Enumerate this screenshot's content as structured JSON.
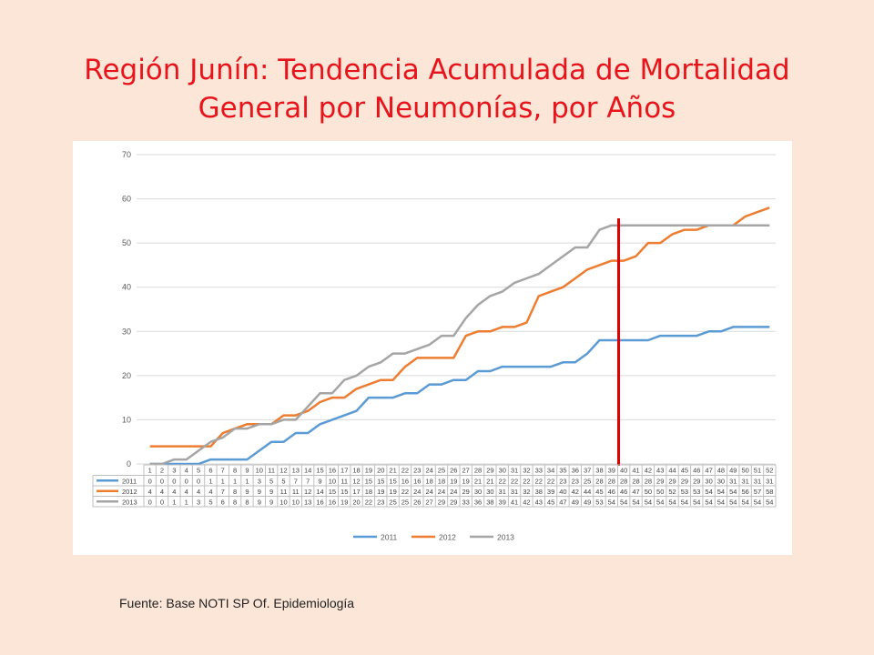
{
  "title": {
    "line1": "Región Junín: Tendencia Acumulada de Mortalidad",
    "line2": "General por Neumonías, por Años"
  },
  "source": "Fuente: Base NOTI SP Of. Epidemiología",
  "colors": {
    "2011": "#5b9bd5",
    "2012": "#ed7d31",
    "2013": "#a5a5a5",
    "marker": "#e00000"
  },
  "chart_data": {
    "type": "line",
    "title": "",
    "xlabel": "",
    "ylabel": "",
    "ylim": [
      0,
      70
    ],
    "yticks": [
      0,
      10,
      20,
      30,
      40,
      50,
      60,
      70
    ],
    "grid": true,
    "legend": "bottom",
    "vertical_marker_x": 40,
    "categories": [
      1,
      2,
      3,
      4,
      5,
      6,
      7,
      8,
      9,
      10,
      11,
      12,
      13,
      14,
      15,
      16,
      17,
      18,
      19,
      20,
      21,
      22,
      23,
      24,
      25,
      26,
      27,
      28,
      29,
      30,
      31,
      32,
      33,
      34,
      35,
      36,
      37,
      38,
      39,
      40,
      41,
      42,
      43,
      44,
      45,
      46,
      47,
      48,
      49,
      50,
      51,
      52
    ],
    "series": [
      {
        "name": "2011",
        "values": [
          0,
          0,
          0,
          0,
          0,
          1,
          1,
          1,
          1,
          3,
          5,
          5,
          7,
          7,
          9,
          10,
          11,
          12,
          15,
          15,
          15,
          16,
          16,
          18,
          18,
          19,
          19,
          21,
          21,
          22,
          22,
          22,
          22,
          22,
          23,
          23,
          25,
          28,
          28,
          28,
          28,
          28,
          29,
          29,
          29,
          29,
          30,
          30,
          31,
          31,
          31,
          31
        ]
      },
      {
        "name": "2012",
        "values": [
          4,
          4,
          4,
          4,
          4,
          4,
          7,
          8,
          9,
          9,
          9,
          11,
          11,
          12,
          14,
          15,
          15,
          17,
          18,
          19,
          19,
          22,
          24,
          24,
          24,
          24,
          29,
          30,
          30,
          31,
          31,
          32,
          38,
          39,
          40,
          42,
          44,
          45,
          46,
          46,
          47,
          50,
          50,
          52,
          53,
          53,
          54,
          54,
          54,
          56,
          57,
          58
        ]
      },
      {
        "name": "2013",
        "values": [
          0,
          0,
          1,
          1,
          3,
          5,
          6,
          8,
          8,
          9,
          9,
          10,
          10,
          13,
          16,
          16,
          19,
          20,
          22,
          23,
          25,
          25,
          26,
          27,
          29,
          29,
          33,
          36,
          38,
          39,
          41,
          42,
          43,
          45,
          47,
          49,
          49,
          53,
          54,
          54,
          54,
          54,
          54,
          54,
          54,
          54,
          54,
          54,
          54,
          54,
          54,
          54
        ]
      }
    ]
  }
}
